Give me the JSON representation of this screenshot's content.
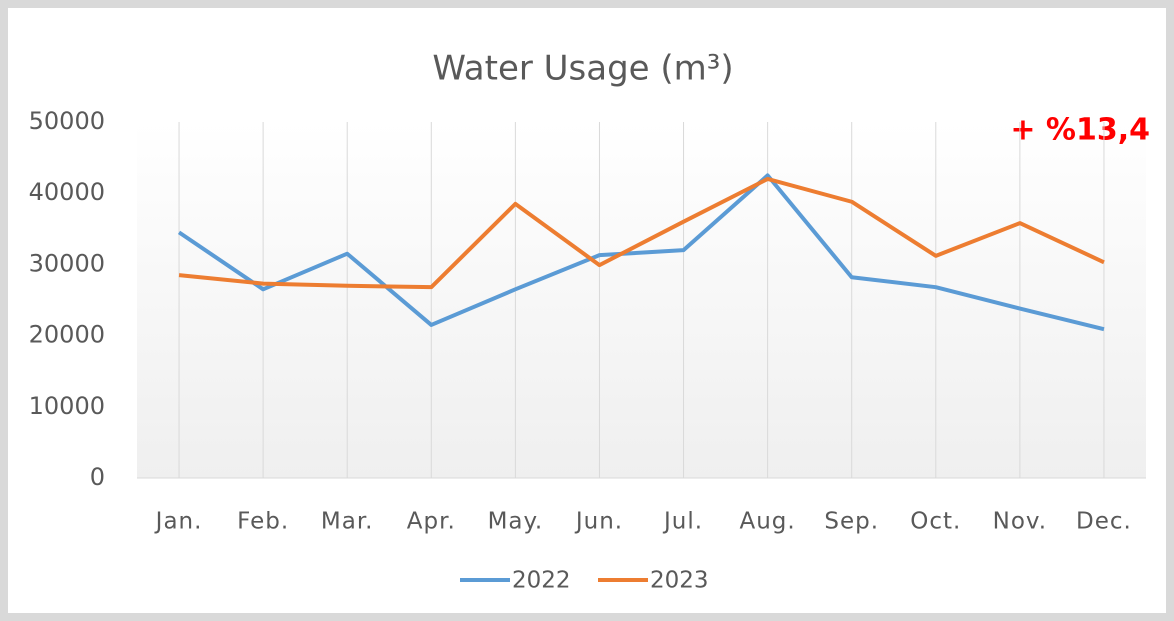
{
  "chart_data": {
    "type": "line",
    "title": "Water Usage (m³)",
    "annotation": "+ %13,4",
    "annotation_color": "#ff0000",
    "categories": [
      "Jan.",
      "Feb.",
      "Mar.",
      "Apr.",
      "May.",
      "Jun.",
      "Jul.",
      "Aug.",
      "Sep.",
      "Oct.",
      "Nov.",
      "Dec."
    ],
    "series": [
      {
        "name": "2022",
        "color": "#5b9bd5",
        "values": [
          34500,
          26500,
          31500,
          21500,
          26500,
          31300,
          32000,
          42500,
          28200,
          26800,
          23800,
          20900
        ]
      },
      {
        "name": "2023",
        "color": "#ed7d31",
        "values": [
          28500,
          27300,
          27000,
          26800,
          38500,
          29900,
          36000,
          42000,
          38800,
          31200,
          35800,
          30300
        ]
      }
    ],
    "ylim": [
      0,
      50000
    ],
    "yticks": [
      0,
      10000,
      20000,
      30000,
      40000,
      50000
    ],
    "grid": true,
    "legend": "bottom"
  }
}
